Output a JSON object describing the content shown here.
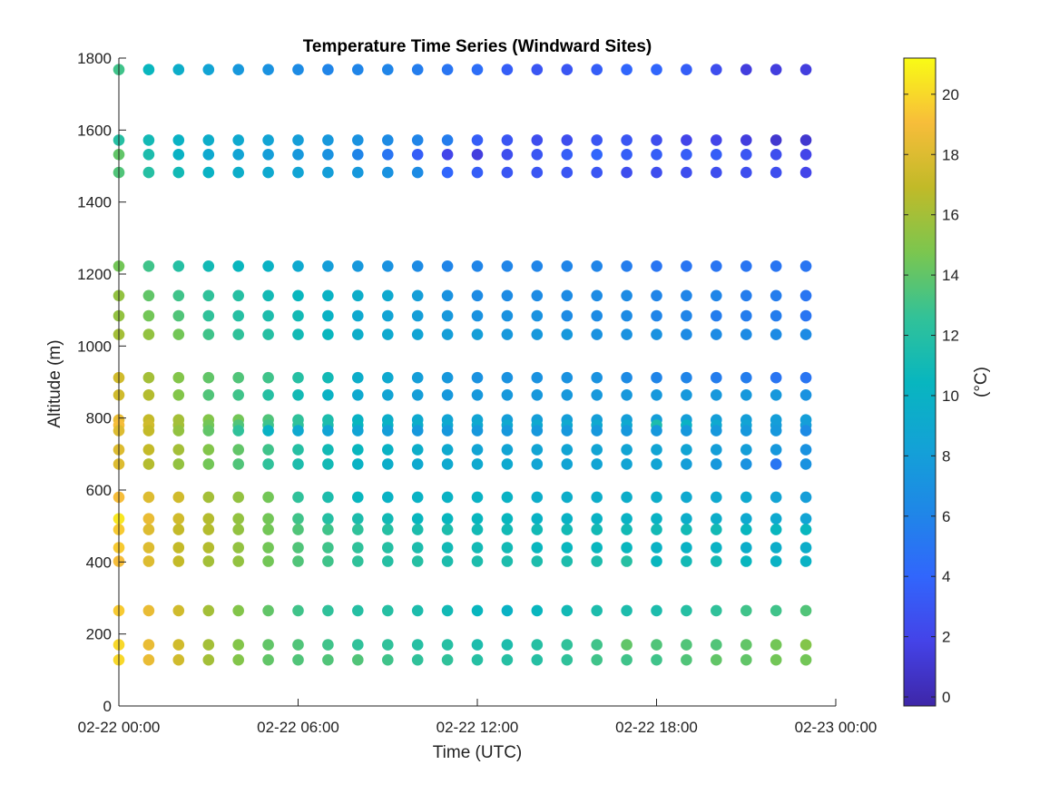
{
  "chart_data": {
    "type": "scatter",
    "title": "Temperature Time Series (Windward Sites)",
    "xlabel": "Time (UTC)",
    "ylabel": "Altitude (m)",
    "colorbar_label": "(°C)",
    "xlim_hours": [
      0,
      24
    ],
    "x_ticks": [
      {
        "hour": 0,
        "label": "02-22 00:00"
      },
      {
        "hour": 6,
        "label": "02-22 06:00"
      },
      {
        "hour": 12,
        "label": "02-22 12:00"
      },
      {
        "hour": 18,
        "label": "02-22 18:00"
      },
      {
        "hour": 24,
        "label": "02-23 00:00"
      }
    ],
    "ylim": [
      0,
      1800
    ],
    "y_ticks": [
      0,
      200,
      400,
      600,
      800,
      1000,
      1200,
      1400,
      1600,
      1800
    ],
    "clim": [
      -0.3,
      21.2
    ],
    "colorbar_ticks": [
      0,
      2,
      4,
      6,
      8,
      10,
      12,
      14,
      16,
      18,
      20
    ],
    "colormap": "parula",
    "times_hours": [
      0,
      1,
      2,
      3,
      4,
      5,
      6,
      7,
      8,
      9,
      10,
      11,
      12,
      13,
      14,
      15,
      16,
      17,
      18,
      19,
      20,
      21,
      22,
      23,
      24
    ],
    "series": [
      {
        "altitude": 1768,
        "temps": [
          13,
          10.5,
          9.5,
          8.5,
          7.5,
          7,
          6.5,
          6,
          6,
          6,
          5.5,
          5,
          4.5,
          3.5,
          3,
          3,
          3.5,
          4,
          4,
          3.5,
          2.5,
          1.5,
          1.5,
          1.5
        ]
      },
      {
        "altitude": 1572,
        "temps": [
          12,
          11,
          10,
          9.5,
          9,
          8.5,
          8,
          7.5,
          7,
          6.5,
          6,
          5.5,
          3.5,
          3,
          2.5,
          2.5,
          3,
          3,
          2.5,
          2,
          2,
          1.5,
          1,
          1
        ]
      },
      {
        "altitude": 1532,
        "temps": [
          14,
          11.5,
          10,
          9,
          8.5,
          8,
          7.5,
          7,
          6,
          5,
          3.5,
          2,
          1.5,
          2.5,
          3,
          3.5,
          4,
          3.5,
          3.5,
          3.5,
          3.5,
          3,
          2.5,
          2
        ]
      },
      {
        "altitude": 1482,
        "temps": [
          13.5,
          12,
          11,
          10,
          9.5,
          9,
          8.5,
          8,
          7.5,
          7,
          6.5,
          4,
          3.5,
          3,
          3,
          3,
          3,
          2.5,
          2.5,
          2.5,
          2.5,
          2.5,
          2.5,
          2
        ]
      },
      {
        "altitude": 1222,
        "temps": [
          14.5,
          13,
          12,
          11,
          10.5,
          10,
          9,
          8,
          7.5,
          7,
          6.5,
          6,
          6,
          6,
          6,
          6,
          6,
          5.5,
          5,
          5,
          5,
          5,
          5,
          5
        ]
      },
      {
        "altitude": 1140,
        "temps": [
          15.5,
          14,
          13,
          12.5,
          12,
          11,
          10.5,
          10,
          9.5,
          9,
          8,
          7,
          6.5,
          6.5,
          6.5,
          6.5,
          6.5,
          6.5,
          6,
          6,
          6,
          5.5,
          5.5,
          5
        ]
      },
      {
        "altitude": 1084,
        "temps": [
          15.5,
          14.5,
          13.5,
          12.5,
          12,
          11.5,
          11,
          10,
          9,
          8.5,
          8,
          7.5,
          7,
          7,
          7,
          6.5,
          6.5,
          6.5,
          6,
          6,
          5.5,
          5.5,
          5.5,
          5
        ]
      },
      {
        "altitude": 1032,
        "temps": [
          16,
          15.5,
          14.5,
          13,
          12.5,
          12,
          11,
          10.5,
          9.5,
          9,
          8.5,
          8,
          8,
          7.5,
          7.5,
          7.5,
          7,
          7,
          7,
          6.5,
          6.5,
          6.5,
          6.5,
          6.5
        ]
      },
      {
        "altitude": 912,
        "temps": [
          17.5,
          16,
          15,
          14,
          13.5,
          13,
          12,
          11,
          9.5,
          9,
          8,
          7.5,
          7,
          7,
          7,
          7,
          7,
          6.5,
          6,
          6,
          5.5,
          5.5,
          5,
          5
        ]
      },
      {
        "altitude": 864,
        "temps": [
          17.5,
          16.5,
          15,
          13.5,
          13,
          12,
          11,
          10,
          9,
          8.5,
          8,
          7.5,
          7.5,
          7.5,
          7.5,
          7.5,
          7.5,
          7.5,
          7.5,
          7.5,
          7.5,
          7.5,
          7.5,
          7
        ]
      },
      {
        "altitude": 795,
        "temps": [
          18.5,
          17,
          16,
          15,
          14.5,
          13.5,
          12.5,
          11.5,
          10,
          9.5,
          9,
          8.5,
          8.5,
          8,
          8,
          8,
          8,
          8,
          8,
          8,
          8,
          8,
          8,
          8
        ]
      },
      {
        "altitude": 780,
        "temps": [
          19,
          17.5,
          16,
          14.5,
          13.5,
          13,
          12.5,
          11.5,
          10.5,
          10,
          9.5,
          9,
          9,
          9,
          9,
          9,
          9,
          9,
          11.5,
          10,
          9,
          8.5,
          8,
          8
        ]
      },
      {
        "altitude": 765,
        "temps": [
          18,
          17,
          15.5,
          14,
          12.5,
          10,
          9,
          8.5,
          8.5,
          8,
          7.5,
          7.5,
          7.5,
          7.5,
          7.5,
          7.5,
          7.5,
          7.5,
          7.5,
          7.5,
          7.5,
          7.5,
          7.5,
          6.5
        ]
      },
      {
        "altitude": 712,
        "temps": [
          18,
          17,
          16,
          15,
          14,
          13,
          12,
          11,
          10.5,
          10,
          9.5,
          9,
          8.5,
          8.5,
          8.5,
          8.5,
          8.5,
          8.5,
          8.5,
          8.5,
          8,
          8,
          7.5,
          7
        ]
      },
      {
        "altitude": 672,
        "temps": [
          18,
          16.5,
          15.5,
          14.5,
          13.5,
          12.5,
          11.5,
          11,
          10,
          9.5,
          9,
          9,
          9,
          9,
          8.5,
          8.5,
          8.5,
          8.5,
          8.5,
          8,
          7.5,
          7,
          5,
          7
        ]
      },
      {
        "altitude": 580,
        "temps": [
          19,
          18,
          17.5,
          16,
          15.5,
          14.5,
          12.5,
          11.5,
          10.5,
          10,
          10,
          10,
          10,
          10,
          9.5,
          9.5,
          9.5,
          9.5,
          9.5,
          9,
          9,
          9,
          8.5,
          8
        ]
      },
      {
        "altitude": 520,
        "temps": [
          20.5,
          18.5,
          17.5,
          16.5,
          15.5,
          14.5,
          13,
          12,
          11.5,
          11,
          10.5,
          10.5,
          10.5,
          10.5,
          10,
          10,
          10,
          10,
          10,
          9.5,
          9.5,
          9,
          9,
          8.5
        ]
      },
      {
        "altitude": 490,
        "temps": [
          19.5,
          18,
          17,
          16.5,
          15.5,
          14.5,
          13.5,
          13,
          12.5,
          12,
          11.5,
          11.5,
          11,
          11,
          11,
          11,
          11,
          11,
          11,
          11,
          11,
          10.5,
          10.5,
          10.5
        ]
      },
      {
        "altitude": 440,
        "temps": [
          19.5,
          18,
          17,
          16.5,
          15.5,
          14.5,
          13.5,
          13,
          12.5,
          12,
          11.5,
          11,
          11,
          11,
          10.5,
          10.5,
          10.5,
          10.5,
          10,
          10,
          10,
          9.5,
          9.5,
          9.5
        ]
      },
      {
        "altitude": 402,
        "temps": [
          19,
          18,
          17,
          16,
          15.5,
          14.5,
          13.5,
          13,
          12.5,
          12,
          12,
          11.5,
          11.5,
          11.5,
          11.5,
          11.5,
          11.5,
          12,
          10.5,
          11,
          11,
          10.5,
          10,
          10
        ]
      },
      {
        "altitude": 265,
        "temps": [
          19.5,
          18.5,
          17.5,
          16,
          15,
          14,
          13,
          12.5,
          12,
          12,
          11.5,
          11,
          10.5,
          10,
          10.5,
          11,
          11.5,
          11.5,
          11.5,
          12,
          12.5,
          13,
          13,
          13.5
        ]
      },
      {
        "altitude": 170,
        "temps": [
          20,
          18.5,
          17.5,
          16,
          15,
          14,
          13.5,
          13,
          12.5,
          12.5,
          12,
          12,
          11.5,
          11.5,
          12,
          12.5,
          13,
          14,
          13.5,
          13.5,
          13.5,
          14,
          14.5,
          15
        ]
      },
      {
        "altitude": 128,
        "temps": [
          20,
          18.5,
          17.5,
          16,
          15,
          14,
          13.5,
          13.5,
          13.5,
          13,
          12.5,
          12.5,
          12,
          12,
          12,
          12.5,
          13,
          13,
          13,
          13.5,
          14,
          14,
          14.5,
          14.5
        ]
      }
    ]
  }
}
